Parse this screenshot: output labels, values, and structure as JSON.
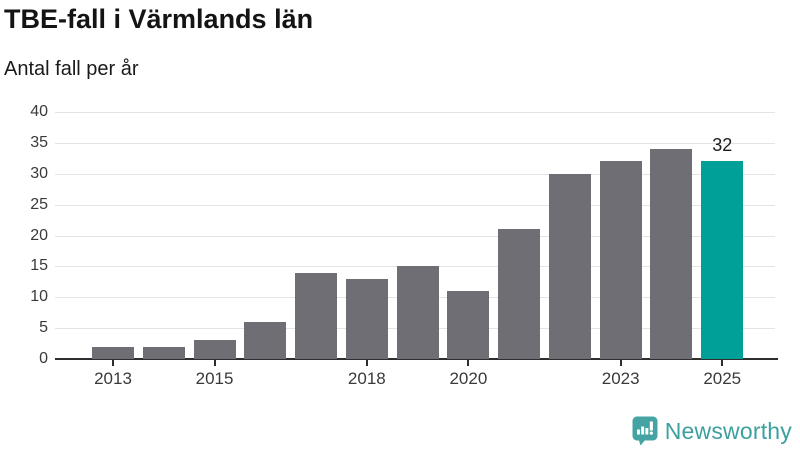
{
  "chart_data": {
    "type": "bar",
    "title": "TBE-fall i Värmlands län",
    "subtitle": "Antal fall per år",
    "categories": [
      "2013",
      "2014",
      "2015",
      "2016",
      "2017",
      "2018",
      "2019",
      "2020",
      "2021",
      "2022",
      "2023",
      "2024",
      "2025"
    ],
    "values": [
      2,
      2,
      3,
      6,
      14,
      13,
      15,
      11,
      21,
      30,
      32,
      34,
      32
    ],
    "ylim": [
      0,
      40
    ],
    "yticks": [
      0,
      5,
      10,
      15,
      20,
      25,
      30,
      35,
      40
    ],
    "xticks_shown": [
      "2013",
      "2015",
      "2018",
      "2020",
      "2023",
      "2025"
    ],
    "highlight_category": "2025",
    "highlight_value_label": "32",
    "grid": "horizontal",
    "legend": "none",
    "colors": {
      "bar": "#6e6e74",
      "highlight": "#00a098",
      "gridline": "#e4e4e4",
      "axis_line": "#2e2e2e",
      "tick_label": "#3a3a3a"
    }
  },
  "branding": {
    "name": "Newsworthy",
    "text_color": "#3ba19f",
    "icon_color": "#45a4a3",
    "icon": "newsworthy-speech-bubble-chart-icon"
  }
}
